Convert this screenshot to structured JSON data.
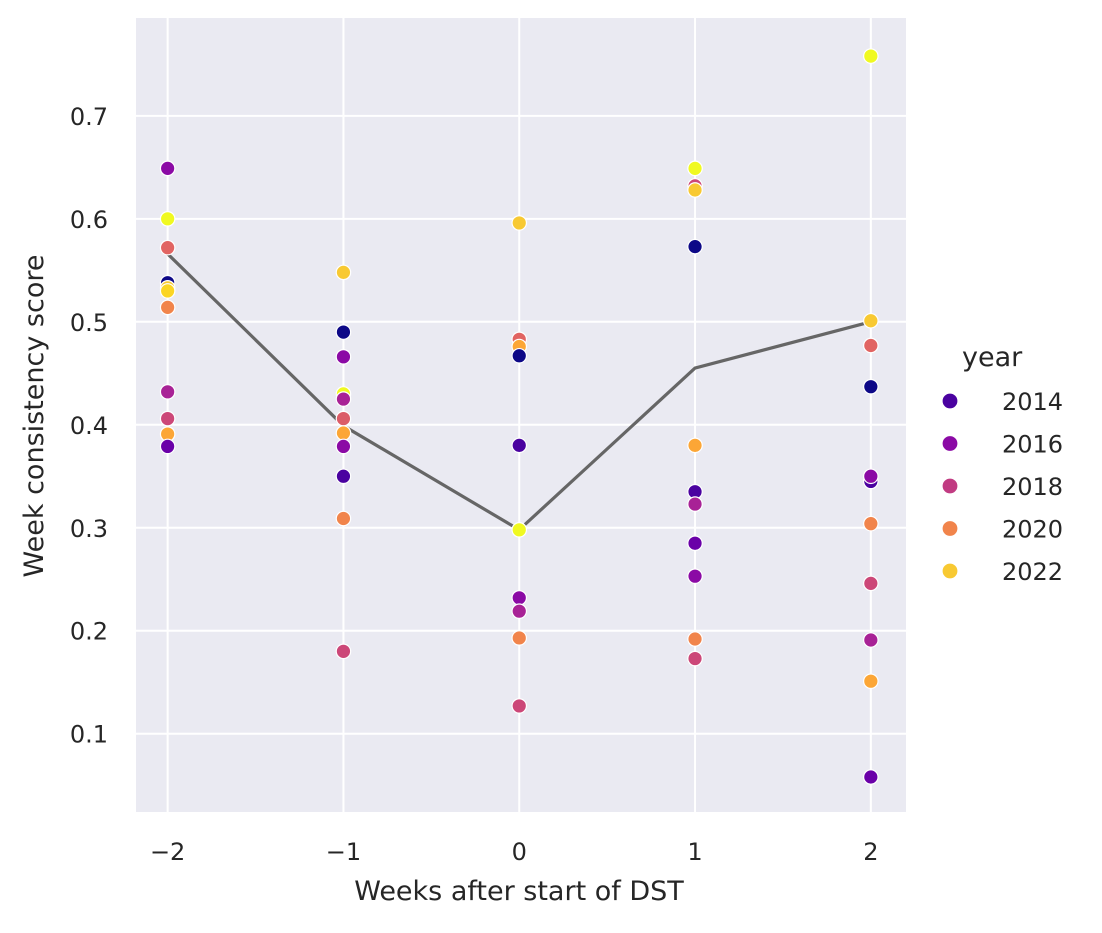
{
  "chart_data": {
    "type": "scatter",
    "xlabel": "Weeks after start of DST",
    "ylabel": "Week consistency score",
    "xlim": [
      -2.18,
      2.2
    ],
    "ylim": [
      0.024,
      0.795
    ],
    "xticks": [
      -2,
      -1,
      0,
      1,
      2
    ],
    "xtick_labels": [
      "−2",
      "−1",
      "0",
      "1",
      "2"
    ],
    "yticks": [
      0.1,
      0.2,
      0.3,
      0.4,
      0.5,
      0.6,
      0.7
    ],
    "ytick_labels": [
      "0.1",
      "0.2",
      "0.3",
      "0.4",
      "0.5",
      "0.6",
      "0.7"
    ],
    "grid": true,
    "background": "#eaeaf2",
    "legend": {
      "title": "year",
      "placement": "right",
      "entries": [
        {
          "label": "2014",
          "color": "#4a02a0"
        },
        {
          "label": "2016",
          "color": "#8b0aa5"
        },
        {
          "label": "2018",
          "color": "#c13b82"
        },
        {
          "label": "2020",
          "color": "#f1844b"
        },
        {
          "label": "2022",
          "color": "#f8c932"
        }
      ]
    },
    "points": [
      {
        "x": -2,
        "y": 0.649,
        "color": "#8b0aa5"
      },
      {
        "x": -2,
        "y": 0.6,
        "color": "#f0f921"
      },
      {
        "x": -2,
        "y": 0.572,
        "color": "#e16462"
      },
      {
        "x": -2,
        "y": 0.538,
        "color": "#0d0887"
      },
      {
        "x": -2,
        "y": 0.533,
        "color": "#f8c932"
      },
      {
        "x": -2,
        "y": 0.53,
        "color": "#fbd524"
      },
      {
        "x": -2,
        "y": 0.514,
        "color": "#f1844b"
      },
      {
        "x": -2,
        "y": 0.432,
        "color": "#a82296"
      },
      {
        "x": -2,
        "y": 0.406,
        "color": "#cc4778"
      },
      {
        "x": -2,
        "y": 0.391,
        "color": "#fca636"
      },
      {
        "x": -2,
        "y": 0.379,
        "color": "#6a00a8"
      },
      {
        "x": -1,
        "y": 0.548,
        "color": "#f8c932"
      },
      {
        "x": -1,
        "y": 0.49,
        "color": "#0d0887"
      },
      {
        "x": -1,
        "y": 0.466,
        "color": "#8b0aa5"
      },
      {
        "x": -1,
        "y": 0.43,
        "color": "#f0f921"
      },
      {
        "x": -1,
        "y": 0.425,
        "color": "#a82296"
      },
      {
        "x": -1,
        "y": 0.406,
        "color": "#db5c68"
      },
      {
        "x": -1,
        "y": 0.392,
        "color": "#fca636"
      },
      {
        "x": -1,
        "y": 0.379,
        "color": "#8b0aa5"
      },
      {
        "x": -1,
        "y": 0.35,
        "color": "#4a02a0"
      },
      {
        "x": -1,
        "y": 0.309,
        "color": "#f1844b"
      },
      {
        "x": -1,
        "y": 0.18,
        "color": "#cc4778"
      },
      {
        "x": 0,
        "y": 0.596,
        "color": "#f8c932"
      },
      {
        "x": 0,
        "y": 0.483,
        "color": "#e16462"
      },
      {
        "x": 0,
        "y": 0.476,
        "color": "#fca636"
      },
      {
        "x": 0,
        "y": 0.467,
        "color": "#0d0887"
      },
      {
        "x": 0,
        "y": 0.38,
        "color": "#4a02a0"
      },
      {
        "x": 0,
        "y": 0.298,
        "color": "#f0f921"
      },
      {
        "x": 0,
        "y": 0.232,
        "color": "#8b0aa5"
      },
      {
        "x": 0,
        "y": 0.219,
        "color": "#a82296"
      },
      {
        "x": 0,
        "y": 0.193,
        "color": "#f1844b"
      },
      {
        "x": 0,
        "y": 0.127,
        "color": "#cc4778"
      },
      {
        "x": 1,
        "y": 0.649,
        "color": "#f0f921"
      },
      {
        "x": 1,
        "y": 0.632,
        "color": "#cc4778"
      },
      {
        "x": 1,
        "y": 0.628,
        "color": "#f8c932"
      },
      {
        "x": 1,
        "y": 0.573,
        "color": "#0d0887"
      },
      {
        "x": 1,
        "y": 0.38,
        "color": "#fca636"
      },
      {
        "x": 1,
        "y": 0.335,
        "color": "#4a02a0"
      },
      {
        "x": 1,
        "y": 0.323,
        "color": "#a82296"
      },
      {
        "x": 1,
        "y": 0.285,
        "color": "#6a00a8"
      },
      {
        "x": 1,
        "y": 0.253,
        "color": "#8b0aa5"
      },
      {
        "x": 1,
        "y": 0.192,
        "color": "#f1844b"
      },
      {
        "x": 1,
        "y": 0.173,
        "color": "#cc4778"
      },
      {
        "x": 2,
        "y": 0.758,
        "color": "#f0f921"
      },
      {
        "x": 2,
        "y": 0.501,
        "color": "#f8c932"
      },
      {
        "x": 2,
        "y": 0.477,
        "color": "#e16462"
      },
      {
        "x": 2,
        "y": 0.437,
        "color": "#0d0887"
      },
      {
        "x": 2,
        "y": 0.345,
        "color": "#4a02a0"
      },
      {
        "x": 2,
        "y": 0.35,
        "color": "#8b0aa5"
      },
      {
        "x": 2,
        "y": 0.304,
        "color": "#f1844b"
      },
      {
        "x": 2,
        "y": 0.246,
        "color": "#cc4778"
      },
      {
        "x": 2,
        "y": 0.191,
        "color": "#a82296"
      },
      {
        "x": 2,
        "y": 0.151,
        "color": "#fca636"
      },
      {
        "x": 2,
        "y": 0.058,
        "color": "#6a00a8"
      }
    ],
    "mean_line": {
      "color": "#666666",
      "x": [
        -2,
        -1,
        0,
        1,
        2
      ],
      "y": [
        0.566,
        0.399,
        0.298,
        0.455,
        0.5
      ]
    }
  }
}
